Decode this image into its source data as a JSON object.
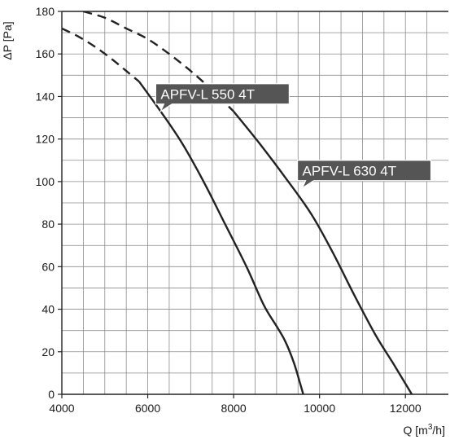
{
  "chart_data": {
    "type": "line",
    "title": "",
    "xlabel": "Q [m³/h]",
    "xlabel_base": "Q [m",
    "xlabel_sup": "3",
    "xlabel_tail": "/h]",
    "ylabel": "ΔP [Pa]",
    "xlim": [
      4000,
      13000
    ],
    "ylim": [
      0,
      180
    ],
    "x_ticks": [
      4000,
      6000,
      8000,
      10000,
      12000
    ],
    "y_ticks": [
      0,
      20,
      40,
      60,
      80,
      100,
      120,
      140,
      160,
      180
    ],
    "grid": true,
    "grid_minor_x_step": 500,
    "grid_minor_y_step": 10,
    "line_color": "#222222",
    "callout_color": "#555555",
    "series": [
      {
        "name": "APFV-L 550 4T",
        "dashed_points": [
          [
            4000,
            172
          ],
          [
            4400,
            168
          ],
          [
            4800,
            163
          ],
          [
            5200,
            157
          ],
          [
            5500,
            152
          ],
          [
            5800,
            147
          ]
        ],
        "solid_points": [
          [
            5800,
            147
          ],
          [
            6300,
            133
          ],
          [
            6800,
            118
          ],
          [
            7300,
            100
          ],
          [
            7800,
            80
          ],
          [
            8300,
            60
          ],
          [
            8700,
            42
          ],
          [
            9000,
            32
          ],
          [
            9200,
            25
          ],
          [
            9400,
            15
          ],
          [
            9550,
            5
          ],
          [
            9620,
            0
          ]
        ],
        "label_anchor": [
          6300,
          133
        ]
      },
      {
        "name": "APFV-L 630 4T",
        "dashed_points": [
          [
            4500,
            180
          ],
          [
            5000,
            177
          ],
          [
            5500,
            172
          ],
          [
            6000,
            167
          ],
          [
            6500,
            160
          ],
          [
            7000,
            152
          ],
          [
            7500,
            143
          ],
          [
            7900,
            135
          ],
          [
            8000,
            133
          ]
        ],
        "solid_points": [
          [
            8000,
            133
          ],
          [
            8600,
            118
          ],
          [
            9200,
            102
          ],
          [
            9800,
            85
          ],
          [
            10300,
            67
          ],
          [
            10800,
            47
          ],
          [
            11300,
            28
          ],
          [
            11700,
            15
          ],
          [
            12000,
            5
          ],
          [
            12150,
            0
          ]
        ],
        "label_anchor": [
          9600,
          97
        ]
      }
    ]
  }
}
